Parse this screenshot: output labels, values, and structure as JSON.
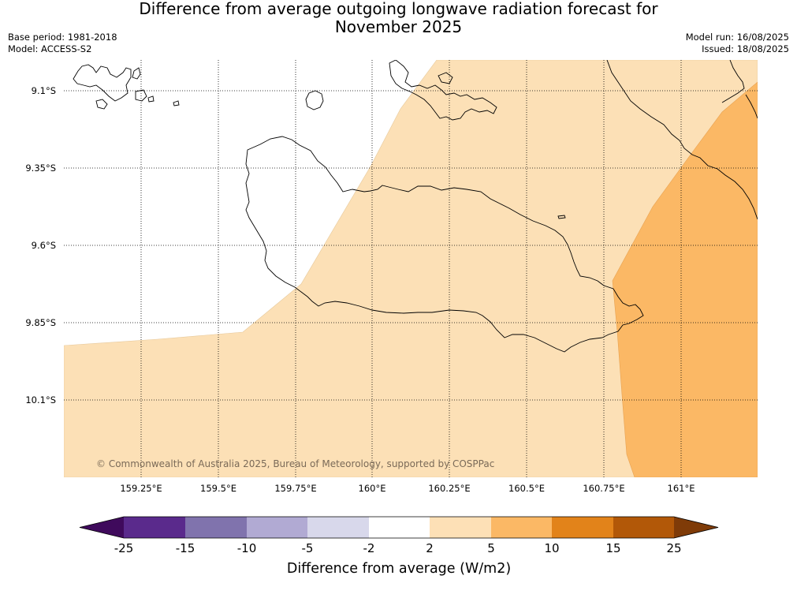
{
  "header": {
    "title_line1": "Difference from average outgoing longwave radiation forecast for",
    "title_line2": "November 2025",
    "base_period": "Base period: 1981-2018",
    "model": "Model: ACCESS-S2",
    "model_run": "Model run: 16/08/2025",
    "issued": "Issued: 18/08/2025"
  },
  "map": {
    "lat_labels": [
      "9.1°S",
      "9.35°S",
      "9.6°S",
      "9.85°S",
      "10.1°S"
    ],
    "lon_labels": [
      "159.25°E",
      "159.5°E",
      "159.75°E",
      "160°E",
      "160.25°E",
      "160.5°E",
      "160.75°E",
      "161°E"
    ],
    "copyright": "© Commonwealth of Australia 2025, Bureau of Meteorology, supported by COSPPac",
    "fill_colors": {
      "light_orange": "#fce0b6",
      "orange": "#fbb865",
      "coast": "#000000"
    }
  },
  "colorbar": {
    "title": "Difference from average (W/m2)",
    "ticks": [
      "-25",
      "-15",
      "-10",
      "-5",
      "-2",
      "2",
      "5",
      "10",
      "15",
      "25"
    ],
    "colors": [
      "#3f0a5c",
      "#5a2a8c",
      "#8073ad",
      "#b1aad3",
      "#d8d8eb",
      "#ffffff",
      "#fde0b6",
      "#fbb865",
      "#e2831a",
      "#b25808",
      "#7f3b08"
    ]
  }
}
